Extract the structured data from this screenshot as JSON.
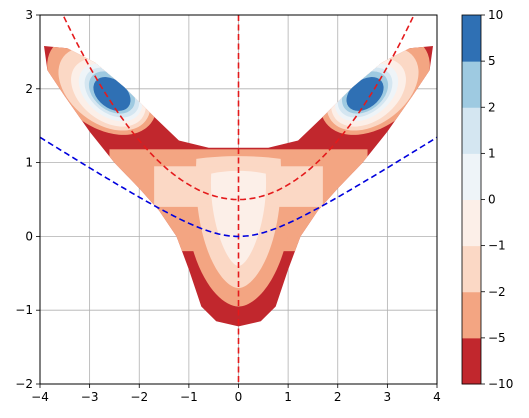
{
  "chart_data": {
    "type": "filled-contour",
    "xlim": [
      -4,
      4
    ],
    "ylim": [
      -2,
      3
    ],
    "xticks": [
      -4,
      -3,
      -2,
      -1,
      0,
      1,
      2,
      3,
      4
    ],
    "yticks": [
      -2,
      -1,
      0,
      1,
      2,
      3
    ],
    "xtick_labels": [
      "−4",
      "−3",
      "−2",
      "−1",
      "0",
      "1",
      "2",
      "3",
      "4"
    ],
    "ytick_labels": [
      "−2",
      "−1",
      "0",
      "1",
      "2",
      "3"
    ],
    "grid": true,
    "colorbar": {
      "levels": [
        -10,
        -5,
        -2,
        -1,
        0,
        1,
        2,
        5,
        10
      ],
      "tick_labels": [
        "−10",
        "−5",
        "−2",
        "−1",
        "0",
        "1",
        "2",
        "5",
        "10"
      ],
      "colors": [
        "#c1272d",
        "#f3a582",
        "#fbd8c5",
        "#fcefe8",
        "#eef4f8",
        "#d4e6f1",
        "#9ecae1",
        "#2f70b4"
      ]
    },
    "band_colors": [
      "#c1272d",
      "#f3a582",
      "#fbd8c5",
      "#fcefe8",
      "#eef4f8",
      "#d4e6f1",
      "#9ecae1",
      "#2f70b4"
    ],
    "red_curve_x_range": [
      -3.6,
      3.6
    ],
    "red_curve": "y = 0.5 + 0.2x^2",
    "blue_curve": "y = 0.43(sqrt(1+x^2)-1)",
    "vertical_line_x": 0,
    "line_colors": {
      "red": "#e41a1c",
      "blue": "#0000dd"
    }
  }
}
